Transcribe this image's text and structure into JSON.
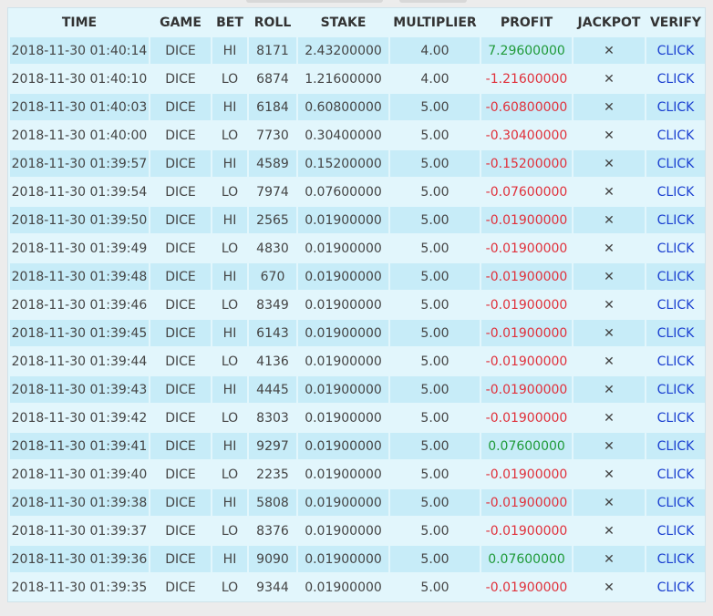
{
  "colors": {
    "panel_bg": "#e2f6fc",
    "row_alt_bg": "#c7ecf8",
    "profit_negative": "#e0313b",
    "profit_positive": "#1f9a39",
    "link": "#1a3fd0"
  },
  "table": {
    "headers": [
      "TIME",
      "GAME",
      "BET",
      "ROLL",
      "STAKE",
      "MULTIPLIER",
      "PROFIT",
      "JACKPOT",
      "VERIFY"
    ],
    "jackpot_icon": "close-icon",
    "rows": [
      {
        "time": "2018-11-30 01:40:14",
        "game": "DICE",
        "bet": "HI",
        "roll": "8171",
        "stake": "2.43200000",
        "multiplier": "4.00",
        "profit": "7.29600000",
        "profit_positive": true,
        "jackpot": "✕",
        "verify": "CLICK"
      },
      {
        "time": "2018-11-30 01:40:10",
        "game": "DICE",
        "bet": "LO",
        "roll": "6874",
        "stake": "1.21600000",
        "multiplier": "4.00",
        "profit": "-1.21600000",
        "profit_positive": false,
        "jackpot": "✕",
        "verify": "CLICK"
      },
      {
        "time": "2018-11-30 01:40:03",
        "game": "DICE",
        "bet": "HI",
        "roll": "6184",
        "stake": "0.60800000",
        "multiplier": "5.00",
        "profit": "-0.60800000",
        "profit_positive": false,
        "jackpot": "✕",
        "verify": "CLICK"
      },
      {
        "time": "2018-11-30 01:40:00",
        "game": "DICE",
        "bet": "LO",
        "roll": "7730",
        "stake": "0.30400000",
        "multiplier": "5.00",
        "profit": "-0.30400000",
        "profit_positive": false,
        "jackpot": "✕",
        "verify": "CLICK"
      },
      {
        "time": "2018-11-30 01:39:57",
        "game": "DICE",
        "bet": "HI",
        "roll": "4589",
        "stake": "0.15200000",
        "multiplier": "5.00",
        "profit": "-0.15200000",
        "profit_positive": false,
        "jackpot": "✕",
        "verify": "CLICK"
      },
      {
        "time": "2018-11-30 01:39:54",
        "game": "DICE",
        "bet": "LO",
        "roll": "7974",
        "stake": "0.07600000",
        "multiplier": "5.00",
        "profit": "-0.07600000",
        "profit_positive": false,
        "jackpot": "✕",
        "verify": "CLICK"
      },
      {
        "time": "2018-11-30 01:39:50",
        "game": "DICE",
        "bet": "HI",
        "roll": "2565",
        "stake": "0.01900000",
        "multiplier": "5.00",
        "profit": "-0.01900000",
        "profit_positive": false,
        "jackpot": "✕",
        "verify": "CLICK"
      },
      {
        "time": "2018-11-30 01:39:49",
        "game": "DICE",
        "bet": "LO",
        "roll": "4830",
        "stake": "0.01900000",
        "multiplier": "5.00",
        "profit": "-0.01900000",
        "profit_positive": false,
        "jackpot": "✕",
        "verify": "CLICK"
      },
      {
        "time": "2018-11-30 01:39:48",
        "game": "DICE",
        "bet": "HI",
        "roll": "670",
        "stake": "0.01900000",
        "multiplier": "5.00",
        "profit": "-0.01900000",
        "profit_positive": false,
        "jackpot": "✕",
        "verify": "CLICK"
      },
      {
        "time": "2018-11-30 01:39:46",
        "game": "DICE",
        "bet": "LO",
        "roll": "8349",
        "stake": "0.01900000",
        "multiplier": "5.00",
        "profit": "-0.01900000",
        "profit_positive": false,
        "jackpot": "✕",
        "verify": "CLICK"
      },
      {
        "time": "2018-11-30 01:39:45",
        "game": "DICE",
        "bet": "HI",
        "roll": "6143",
        "stake": "0.01900000",
        "multiplier": "5.00",
        "profit": "-0.01900000",
        "profit_positive": false,
        "jackpot": "✕",
        "verify": "CLICK"
      },
      {
        "time": "2018-11-30 01:39:44",
        "game": "DICE",
        "bet": "LO",
        "roll": "4136",
        "stake": "0.01900000",
        "multiplier": "5.00",
        "profit": "-0.01900000",
        "profit_positive": false,
        "jackpot": "✕",
        "verify": "CLICK"
      },
      {
        "time": "2018-11-30 01:39:43",
        "game": "DICE",
        "bet": "HI",
        "roll": "4445",
        "stake": "0.01900000",
        "multiplier": "5.00",
        "profit": "-0.01900000",
        "profit_positive": false,
        "jackpot": "✕",
        "verify": "CLICK"
      },
      {
        "time": "2018-11-30 01:39:42",
        "game": "DICE",
        "bet": "LO",
        "roll": "8303",
        "stake": "0.01900000",
        "multiplier": "5.00",
        "profit": "-0.01900000",
        "profit_positive": false,
        "jackpot": "✕",
        "verify": "CLICK"
      },
      {
        "time": "2018-11-30 01:39:41",
        "game": "DICE",
        "bet": "HI",
        "roll": "9297",
        "stake": "0.01900000",
        "multiplier": "5.00",
        "profit": "0.07600000",
        "profit_positive": true,
        "jackpot": "✕",
        "verify": "CLICK"
      },
      {
        "time": "2018-11-30 01:39:40",
        "game": "DICE",
        "bet": "LO",
        "roll": "2235",
        "stake": "0.01900000",
        "multiplier": "5.00",
        "profit": "-0.01900000",
        "profit_positive": false,
        "jackpot": "✕",
        "verify": "CLICK"
      },
      {
        "time": "2018-11-30 01:39:38",
        "game": "DICE",
        "bet": "HI",
        "roll": "5808",
        "stake": "0.01900000",
        "multiplier": "5.00",
        "profit": "-0.01900000",
        "profit_positive": false,
        "jackpot": "✕",
        "verify": "CLICK"
      },
      {
        "time": "2018-11-30 01:39:37",
        "game": "DICE",
        "bet": "LO",
        "roll": "8376",
        "stake": "0.01900000",
        "multiplier": "5.00",
        "profit": "-0.01900000",
        "profit_positive": false,
        "jackpot": "✕",
        "verify": "CLICK"
      },
      {
        "time": "2018-11-30 01:39:36",
        "game": "DICE",
        "bet": "HI",
        "roll": "9090",
        "stake": "0.01900000",
        "multiplier": "5.00",
        "profit": "0.07600000",
        "profit_positive": true,
        "jackpot": "✕",
        "verify": "CLICK"
      },
      {
        "time": "2018-11-30 01:39:35",
        "game": "DICE",
        "bet": "LO",
        "roll": "9344",
        "stake": "0.01900000",
        "multiplier": "5.00",
        "profit": "-0.01900000",
        "profit_positive": false,
        "jackpot": "✕",
        "verify": "CLICK"
      }
    ]
  }
}
